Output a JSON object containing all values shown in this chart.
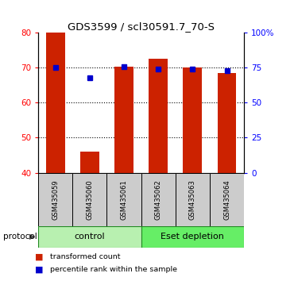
{
  "title": "GDS3599 / scl30591.7_70-S",
  "samples": [
    "GSM435059",
    "GSM435060",
    "GSM435061",
    "GSM435062",
    "GSM435063",
    "GSM435064"
  ],
  "bar_heights": [
    80.0,
    46.0,
    70.2,
    72.5,
    70.0,
    68.5
  ],
  "bar_bottom": 40,
  "blue_dots_left": [
    70.1,
    67.0,
    70.2,
    69.5,
    69.5,
    69.0
  ],
  "ylim_left": [
    40,
    80
  ],
  "ylim_right": [
    0,
    100
  ],
  "yticks_left": [
    40,
    50,
    60,
    70,
    80
  ],
  "yticks_right": [
    0,
    25,
    50,
    75,
    100
  ],
  "ytick_right_labels": [
    "0",
    "25",
    "50",
    "75",
    "100%"
  ],
  "bar_color": "#cc2200",
  "dot_color": "#0000cc",
  "protocol_groups": [
    {
      "label": "control",
      "start": 0,
      "end": 3
    },
    {
      "label": "Eset depletion",
      "start": 3,
      "end": 6
    }
  ],
  "protocol_label": "protocol",
  "legend_items": [
    {
      "label": "transformed count",
      "color": "#cc2200"
    },
    {
      "label": "percentile rank within the sample",
      "color": "#0000cc"
    }
  ],
  "group_colors": [
    "#b8f0b0",
    "#66ee66"
  ],
  "bg_color": "#ffffff",
  "label_box_color": "#cccccc"
}
